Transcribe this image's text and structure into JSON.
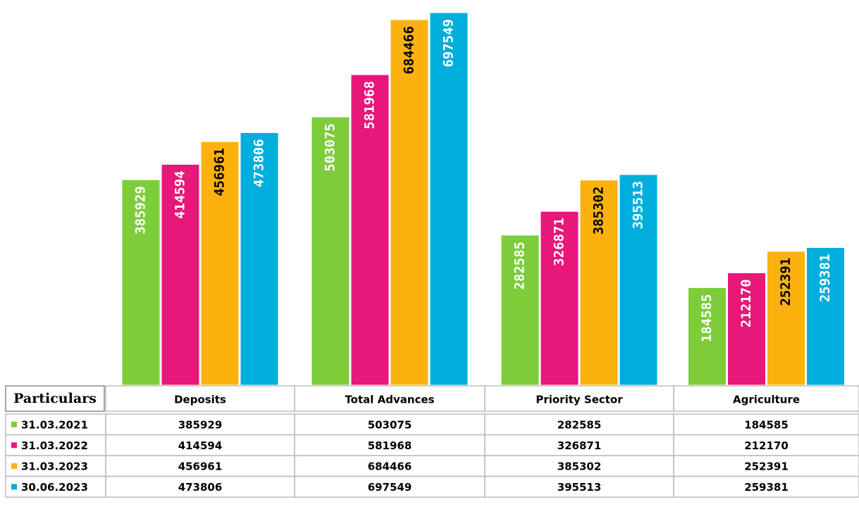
{
  "chart_data": {
    "type": "bar",
    "table_header": "Particulars",
    "categories": [
      "Deposits",
      "Total Advances",
      "Priority Sector",
      "Agriculture"
    ],
    "series": [
      {
        "name": "31.03.2021",
        "color": "#7dcc3a",
        "label_color": "#ffffff",
        "values": [
          385929,
          503075,
          282585,
          184585
        ]
      },
      {
        "name": "31.03.2022",
        "color": "#e8177a",
        "label_color": "#ffffff",
        "values": [
          414594,
          581968,
          326871,
          212170
        ]
      },
      {
        "name": "31.03.2023",
        "color": "#fbb20f",
        "label_color": "#000000",
        "values": [
          456961,
          684466,
          385302,
          252391
        ]
      },
      {
        "name": "30.06.2023",
        "color": "#00aedb",
        "label_color": "#ffffff",
        "values": [
          473806,
          697549,
          395513,
          259381
        ]
      }
    ]
  }
}
